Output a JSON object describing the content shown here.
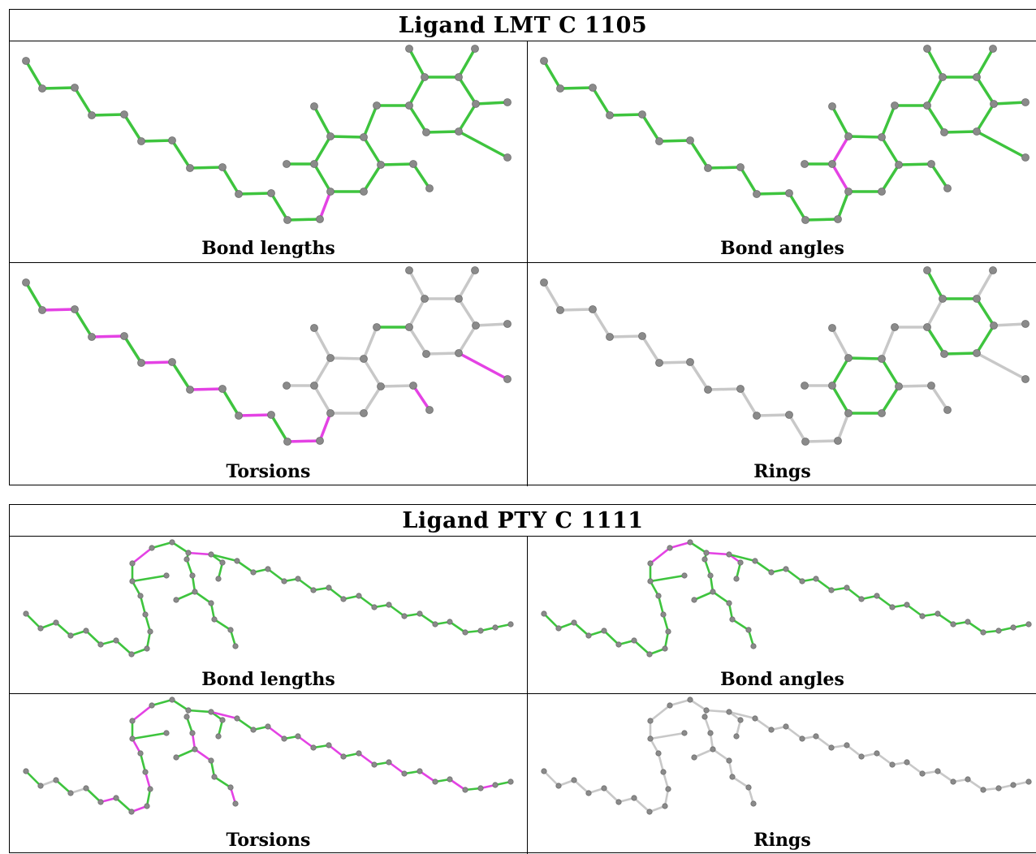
{
  "colors": {
    "ok": "#3ec43e",
    "outlier": "#e442e4",
    "neutral": "#c8c8c8",
    "atom": "#8a8a8a"
  },
  "ligands": [
    {
      "title": "Ligand LMT C 1105",
      "cells": [
        {
          "label": "Bond lengths",
          "mode": "lengths"
        },
        {
          "label": "Bond angles",
          "mode": "angles"
        },
        {
          "label": "Torsions",
          "mode": "torsions"
        },
        {
          "label": "Rings",
          "mode": "rings"
        }
      ]
    },
    {
      "title": "Ligand PTY C 1111",
      "cells": [
        {
          "label": "Bond lengths",
          "mode": "lengths"
        },
        {
          "label": "Bond angles",
          "mode": "angles"
        },
        {
          "label": "Torsions",
          "mode": "torsions"
        },
        {
          "label": "Rings",
          "mode": "rings"
        }
      ]
    }
  ]
}
